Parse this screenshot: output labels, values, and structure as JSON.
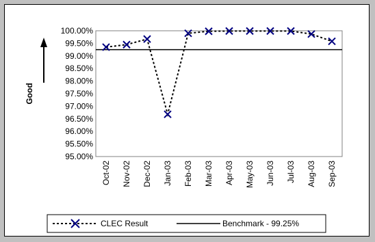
{
  "chart_data": {
    "type": "line",
    "categories": [
      "Oct-02",
      "Nov-02",
      "Dec-02",
      "Jan-03",
      "Feb-03",
      "Mar-03",
      "Apr-03",
      "May-03",
      "Jun-03",
      "Jul-03",
      "Aug-03",
      "Sep-03"
    ],
    "series": [
      {
        "name": "CLEC Result",
        "values": [
          99.35,
          99.45,
          99.67,
          96.68,
          99.9,
          99.98,
          99.99,
          99.99,
          99.99,
          99.99,
          99.87,
          99.58
        ],
        "color": "#000080",
        "style": "dotted",
        "marker": "x"
      },
      {
        "name": "Benchmark - 99.25%",
        "values": [
          99.25,
          99.25,
          99.25,
          99.25,
          99.25,
          99.25,
          99.25,
          99.25,
          99.25,
          99.25,
          99.25,
          99.25
        ],
        "color": "#000000",
        "style": "solid"
      }
    ],
    "ylabel": "Good",
    "ylim": [
      95,
      100
    ],
    "ytick_step": 0.5,
    "ytick_labels": [
      "95.00%",
      "95.50%",
      "96.00%",
      "96.50%",
      "97.00%",
      "97.50%",
      "98.00%",
      "98.50%",
      "99.00%",
      "99.50%",
      "100.00%"
    ],
    "legend_position": "bottom",
    "grid": false,
    "plot_background": "#ffffff"
  }
}
